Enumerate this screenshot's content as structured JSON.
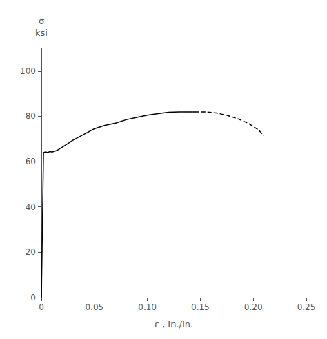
{
  "chart_data": {
    "type": "line",
    "xlabel": "ε , In./In.",
    "ylabel": "σ\nksi",
    "xlim": [
      0,
      0.25
    ],
    "ylim": [
      0,
      110
    ],
    "xticks": [
      0,
      0.05,
      {
        "value": 0.1,
        "label": "0.10"
      },
      0.15,
      {
        "value": 0.2,
        "label": "0.20"
      },
      0.25
    ],
    "yticks": [
      0,
      20,
      40,
      60,
      80,
      100
    ],
    "grid": false,
    "series": [
      {
        "color": "#000000",
        "line_style": "solid",
        "x": [
          0.0,
          0.002,
          0.004,
          0.006,
          0.008,
          0.01,
          0.012,
          0.015,
          0.02,
          0.03,
          0.04,
          0.05,
          0.06,
          0.07,
          0.08,
          0.09,
          0.1,
          0.11,
          0.12,
          0.13,
          0.14,
          0.145
        ],
        "values": [
          0.0,
          64.0,
          64.3,
          64.0,
          64.5,
          64.2,
          64.5,
          65.0,
          66.5,
          69.5,
          72.0,
          74.5,
          76.0,
          77.0,
          78.5,
          79.5,
          80.5,
          81.2,
          81.8,
          82.0,
          82.0,
          82.0
        ]
      },
      {
        "color": "#000000",
        "line_style": "dashed",
        "x": [
          0.145,
          0.155,
          0.165,
          0.175,
          0.185,
          0.195,
          0.205,
          0.21
        ],
        "values": [
          82.0,
          82.0,
          81.5,
          80.5,
          79.0,
          77.0,
          74.0,
          71.5
        ]
      }
    ]
  }
}
